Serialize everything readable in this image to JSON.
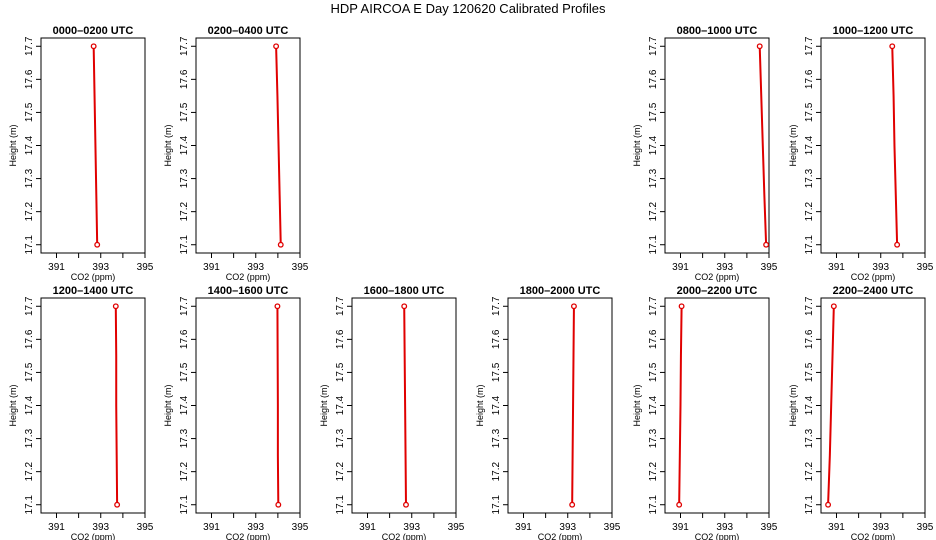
{
  "title": "HDP AIRCOA E  Day 120620  Calibrated Profiles",
  "colors": {
    "profile": "#e00000",
    "axis": "#000000",
    "background": "#ffffff"
  },
  "chart_data": [
    {
      "type": "line",
      "panel": "0000-0200 UTC",
      "title": "0000–0200 UTC",
      "xlabel": "CO2 (ppm)",
      "ylabel": "Height (m)",
      "xlim": [
        390.3,
        395.0
      ],
      "ylim": [
        17.075,
        17.725
      ],
      "x_ticks": [
        391,
        393,
        395
      ],
      "x_minor_ticks": [
        392,
        394
      ],
      "y_ticks": [
        17.1,
        17.2,
        17.3,
        17.4,
        17.5,
        17.6,
        17.7
      ],
      "x": [
        392.68,
        392.72,
        392.76,
        392.8,
        392.84
      ],
      "y": [
        17.7,
        17.55,
        17.4,
        17.25,
        17.1
      ],
      "markers": "endpoints"
    },
    {
      "type": "line",
      "panel": "0200-0400 UTC",
      "title": "0200–0400 UTC",
      "xlabel": "CO2 (ppm)",
      "ylabel": "Height (m)",
      "xlim": [
        390.3,
        395.0
      ],
      "ylim": [
        17.075,
        17.725
      ],
      "x_ticks": [
        391,
        393,
        395
      ],
      "x_minor_ticks": [
        392,
        394
      ],
      "y_ticks": [
        17.1,
        17.2,
        17.3,
        17.4,
        17.5,
        17.6,
        17.7
      ],
      "x": [
        393.92,
        393.98,
        394.03,
        394.08,
        394.13
      ],
      "y": [
        17.7,
        17.55,
        17.4,
        17.25,
        17.1
      ],
      "markers": "endpoints"
    },
    {
      "type": "line",
      "panel": "0800-1000 UTC",
      "title": "0800–1000 UTC",
      "xlabel": "CO2 (ppm)",
      "ylabel": "Height (m)",
      "xlim": [
        390.3,
        395.0
      ],
      "ylim": [
        17.075,
        17.725
      ],
      "x_ticks": [
        391,
        393,
        395
      ],
      "x_minor_ticks": [
        392,
        394
      ],
      "y_ticks": [
        17.1,
        17.2,
        17.3,
        17.4,
        17.5,
        17.6,
        17.7
      ],
      "x": [
        394.58,
        394.65,
        394.72,
        394.79,
        394.87
      ],
      "y": [
        17.7,
        17.55,
        17.4,
        17.25,
        17.1
      ],
      "markers": "endpoints"
    },
    {
      "type": "line",
      "panel": "1000-1200 UTC",
      "title": "1000–1200 UTC",
      "xlabel": "CO2 (ppm)",
      "ylabel": "Height (m)",
      "xlim": [
        390.3,
        395.0
      ],
      "ylim": [
        17.075,
        17.725
      ],
      "x_ticks": [
        391,
        393,
        395
      ],
      "x_minor_ticks": [
        392,
        394
      ],
      "y_ticks": [
        17.1,
        17.2,
        17.3,
        17.4,
        17.5,
        17.6,
        17.7
      ],
      "x": [
        393.52,
        393.58,
        393.62,
        393.68,
        393.74
      ],
      "y": [
        17.7,
        17.55,
        17.4,
        17.25,
        17.1
      ],
      "markers": "endpoints"
    },
    {
      "type": "line",
      "panel": "1200-1400 UTC",
      "title": "1200–1400 UTC",
      "xlabel": "CO2 (ppm)",
      "ylabel": "Height (m)",
      "xlim": [
        390.3,
        395.0
      ],
      "ylim": [
        17.075,
        17.725
      ],
      "x_ticks": [
        391,
        393,
        395
      ],
      "x_minor_ticks": [
        392,
        394
      ],
      "y_ticks": [
        17.1,
        17.2,
        17.3,
        17.4,
        17.5,
        17.6,
        17.7
      ],
      "x": [
        393.68,
        393.7,
        393.7,
        393.72,
        393.74
      ],
      "y": [
        17.7,
        17.55,
        17.4,
        17.25,
        17.1
      ],
      "markers": "endpoints"
    },
    {
      "type": "line",
      "panel": "1400-1600 UTC",
      "title": "1400–1600 UTC",
      "xlabel": "CO2 (ppm)",
      "ylabel": "Height (m)",
      "xlim": [
        390.3,
        395.0
      ],
      "ylim": [
        17.075,
        17.725
      ],
      "x_ticks": [
        391,
        393,
        395
      ],
      "x_minor_ticks": [
        392,
        394
      ],
      "y_ticks": [
        17.1,
        17.2,
        17.3,
        17.4,
        17.5,
        17.6,
        17.7
      ],
      "x": [
        393.98,
        393.99,
        394.0,
        394.0,
        394.02
      ],
      "y": [
        17.7,
        17.55,
        17.4,
        17.25,
        17.1
      ],
      "markers": "endpoints"
    },
    {
      "type": "line",
      "panel": "1600-1800 UTC",
      "title": "1600–1800 UTC",
      "xlabel": "CO2 (ppm)",
      "ylabel": "Height (m)",
      "xlim": [
        390.3,
        395.0
      ],
      "ylim": [
        17.075,
        17.725
      ],
      "x_ticks": [
        391,
        393,
        395
      ],
      "x_minor_ticks": [
        392,
        394
      ],
      "y_ticks": [
        17.1,
        17.2,
        17.3,
        17.4,
        17.5,
        17.6,
        17.7
      ],
      "x": [
        392.66,
        392.68,
        392.7,
        392.72,
        392.74
      ],
      "y": [
        17.7,
        17.55,
        17.4,
        17.25,
        17.1
      ],
      "markers": "endpoints"
    },
    {
      "type": "line",
      "panel": "1800-2000 UTC",
      "title": "1800–2000 UTC",
      "xlabel": "CO2 (ppm)",
      "ylabel": "Height (m)",
      "xlim": [
        390.3,
        395.0
      ],
      "ylim": [
        17.075,
        17.725
      ],
      "x_ticks": [
        391,
        393,
        395
      ],
      "x_minor_ticks": [
        392,
        394
      ],
      "y_ticks": [
        17.1,
        17.2,
        17.3,
        17.4,
        17.5,
        17.6,
        17.7
      ],
      "x": [
        393.28,
        393.26,
        393.24,
        393.22,
        393.2
      ],
      "y": [
        17.7,
        17.55,
        17.4,
        17.25,
        17.1
      ],
      "markers": "endpoints"
    },
    {
      "type": "line",
      "panel": "2000-2200 UTC",
      "title": "2000–2200 UTC",
      "xlabel": "CO2 (ppm)",
      "ylabel": "Height (m)",
      "xlim": [
        390.3,
        395.0
      ],
      "ylim": [
        17.075,
        17.725
      ],
      "x_ticks": [
        391,
        393,
        395
      ],
      "x_minor_ticks": [
        392,
        394
      ],
      "y_ticks": [
        17.1,
        17.2,
        17.3,
        17.4,
        17.5,
        17.6,
        17.7
      ],
      "x": [
        391.05,
        391.02,
        391.0,
        390.97,
        390.94
      ],
      "y": [
        17.7,
        17.55,
        17.4,
        17.25,
        17.1
      ],
      "markers": "endpoints"
    },
    {
      "type": "line",
      "panel": "2200-2400 UTC",
      "title": "2200–2400 UTC",
      "xlabel": "CO2 (ppm)",
      "ylabel": "Height (m)",
      "xlim": [
        390.3,
        395.0
      ],
      "ylim": [
        17.075,
        17.725
      ],
      "x_ticks": [
        391,
        393,
        395
      ],
      "x_minor_ticks": [
        392,
        394
      ],
      "y_ticks": [
        17.1,
        17.2,
        17.3,
        17.4,
        17.5,
        17.6,
        17.7
      ],
      "x": [
        390.88,
        390.82,
        390.76,
        390.7,
        390.62
      ],
      "y": [
        17.7,
        17.55,
        17.4,
        17.25,
        17.1
      ],
      "markers": "endpoints"
    }
  ]
}
